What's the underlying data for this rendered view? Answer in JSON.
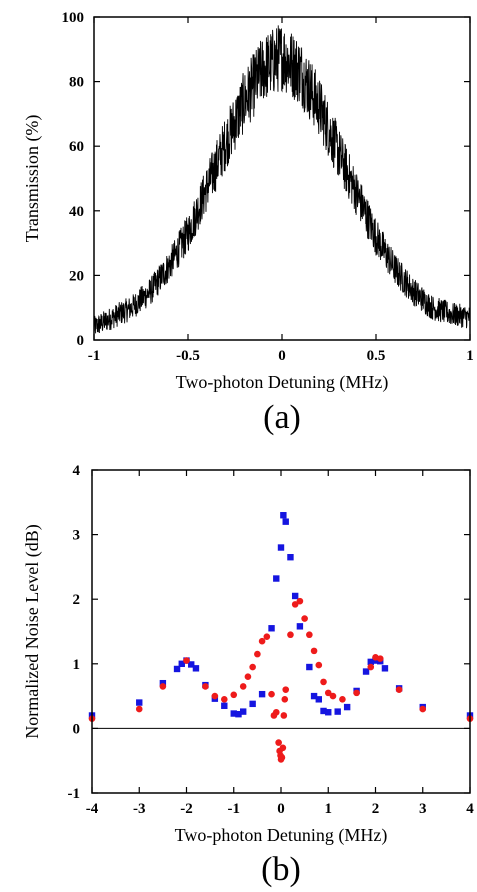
{
  "chart_data": [
    {
      "type": "line",
      "panel": "(a)",
      "xlabel": "Two-photon Detuning (MHz)",
      "ylabel": "Transmission (%)",
      "xlim": [
        -1,
        1
      ],
      "ylim": [
        0,
        100
      ],
      "xticks": [
        -1,
        -0.5,
        0,
        0.5,
        1
      ],
      "xtick_labels": [
        "-1",
        "-0.5",
        "0",
        "0.5",
        "1"
      ],
      "yticks": [
        0,
        20,
        40,
        60,
        80,
        100
      ],
      "ytick_labels": [
        "0",
        "20",
        "40",
        "60",
        "80",
        "100"
      ],
      "grid": false,
      "color": "#000000",
      "series": [
        {
          "x": [
            -1.0,
            -0.9,
            -0.8,
            -0.7,
            -0.6,
            -0.5,
            -0.4,
            -0.3,
            -0.2,
            -0.1,
            0.0,
            0.1,
            0.2,
            0.3,
            0.4,
            0.5,
            0.6,
            0.7,
            0.8,
            0.9,
            1.0
          ],
          "values": [
            4,
            7,
            10,
            15,
            23,
            33,
            47,
            61,
            74,
            84,
            88,
            83,
            72,
            58,
            45,
            32,
            22,
            15,
            10,
            8,
            7
          ]
        }
      ]
    },
    {
      "type": "scatter",
      "panel": "(b)",
      "xlabel": "Two-photon Detuning (MHz)",
      "ylabel": "Normalized Noise Level (dB)",
      "xlim": [
        -4,
        4
      ],
      "ylim": [
        -1,
        4
      ],
      "xticks": [
        -4,
        -3,
        -2,
        -1,
        0,
        1,
        2,
        3,
        4
      ],
      "xtick_labels": [
        "-4",
        "-3",
        "-2",
        "-1",
        "0",
        "1",
        "2",
        "3",
        "4"
      ],
      "yticks": [
        -1,
        0,
        1,
        2,
        3,
        4
      ],
      "ytick_labels": [
        "-1",
        "0",
        "1",
        "2",
        "3",
        "4"
      ],
      "grid": false,
      "reference_line_y": 0,
      "series": [
        {
          "color": "#1515e0",
          "marker": "square",
          "x": [
            -4.0,
            -3.0,
            -2.5,
            -2.2,
            -2.1,
            -2.0,
            -1.9,
            -1.8,
            -1.6,
            -1.4,
            -1.2,
            -1.0,
            -0.9,
            -0.8,
            -0.6,
            -0.4,
            -0.2,
            -0.1,
            0.0,
            0.05,
            0.1,
            0.2,
            0.3,
            0.4,
            0.6,
            0.7,
            0.8,
            0.9,
            1.0,
            1.2,
            1.4,
            1.6,
            1.8,
            1.9,
            2.0,
            2.1,
            2.2,
            2.5,
            3.0,
            4.0
          ],
          "values": [
            0.2,
            0.4,
            0.7,
            0.92,
            1.0,
            1.05,
            0.99,
            0.93,
            0.67,
            0.46,
            0.35,
            0.23,
            0.22,
            0.26,
            0.38,
            0.53,
            1.55,
            2.32,
            2.8,
            3.3,
            3.2,
            2.65,
            2.05,
            1.58,
            0.95,
            0.5,
            0.45,
            0.27,
            0.25,
            0.26,
            0.33,
            0.58,
            0.88,
            1.03,
            1.05,
            1.04,
            0.93,
            0.62,
            0.33,
            0.2
          ]
        },
        {
          "color": "#ee1b1b",
          "marker": "circle",
          "x": [
            -4.0,
            -3.0,
            -2.5,
            -2.0,
            -1.6,
            -1.4,
            -1.2,
            -1.0,
            -0.8,
            -0.7,
            -0.6,
            -0.5,
            -0.4,
            -0.3,
            -0.2,
            -0.15,
            -0.1,
            -0.05,
            -0.03,
            -0.01,
            0.0,
            0.02,
            0.04,
            0.06,
            0.08,
            0.1,
            0.2,
            0.3,
            0.4,
            0.5,
            0.6,
            0.7,
            0.8,
            0.9,
            1.0,
            1.1,
            1.3,
            1.6,
            1.9,
            2.0,
            2.1,
            2.5,
            3.0,
            4.0
          ],
          "values": [
            0.15,
            0.3,
            0.65,
            1.05,
            0.65,
            0.5,
            0.45,
            0.52,
            0.65,
            0.8,
            0.95,
            1.15,
            1.35,
            1.42,
            0.53,
            0.2,
            0.25,
            -0.22,
            -0.35,
            -0.42,
            -0.48,
            -0.45,
            -0.3,
            0.2,
            0.45,
            0.6,
            1.45,
            1.92,
            1.97,
            1.7,
            1.45,
            1.2,
            0.98,
            0.72,
            0.55,
            0.5,
            0.45,
            0.55,
            0.95,
            1.1,
            1.08,
            0.6,
            0.3,
            0.15
          ]
        }
      ]
    }
  ]
}
